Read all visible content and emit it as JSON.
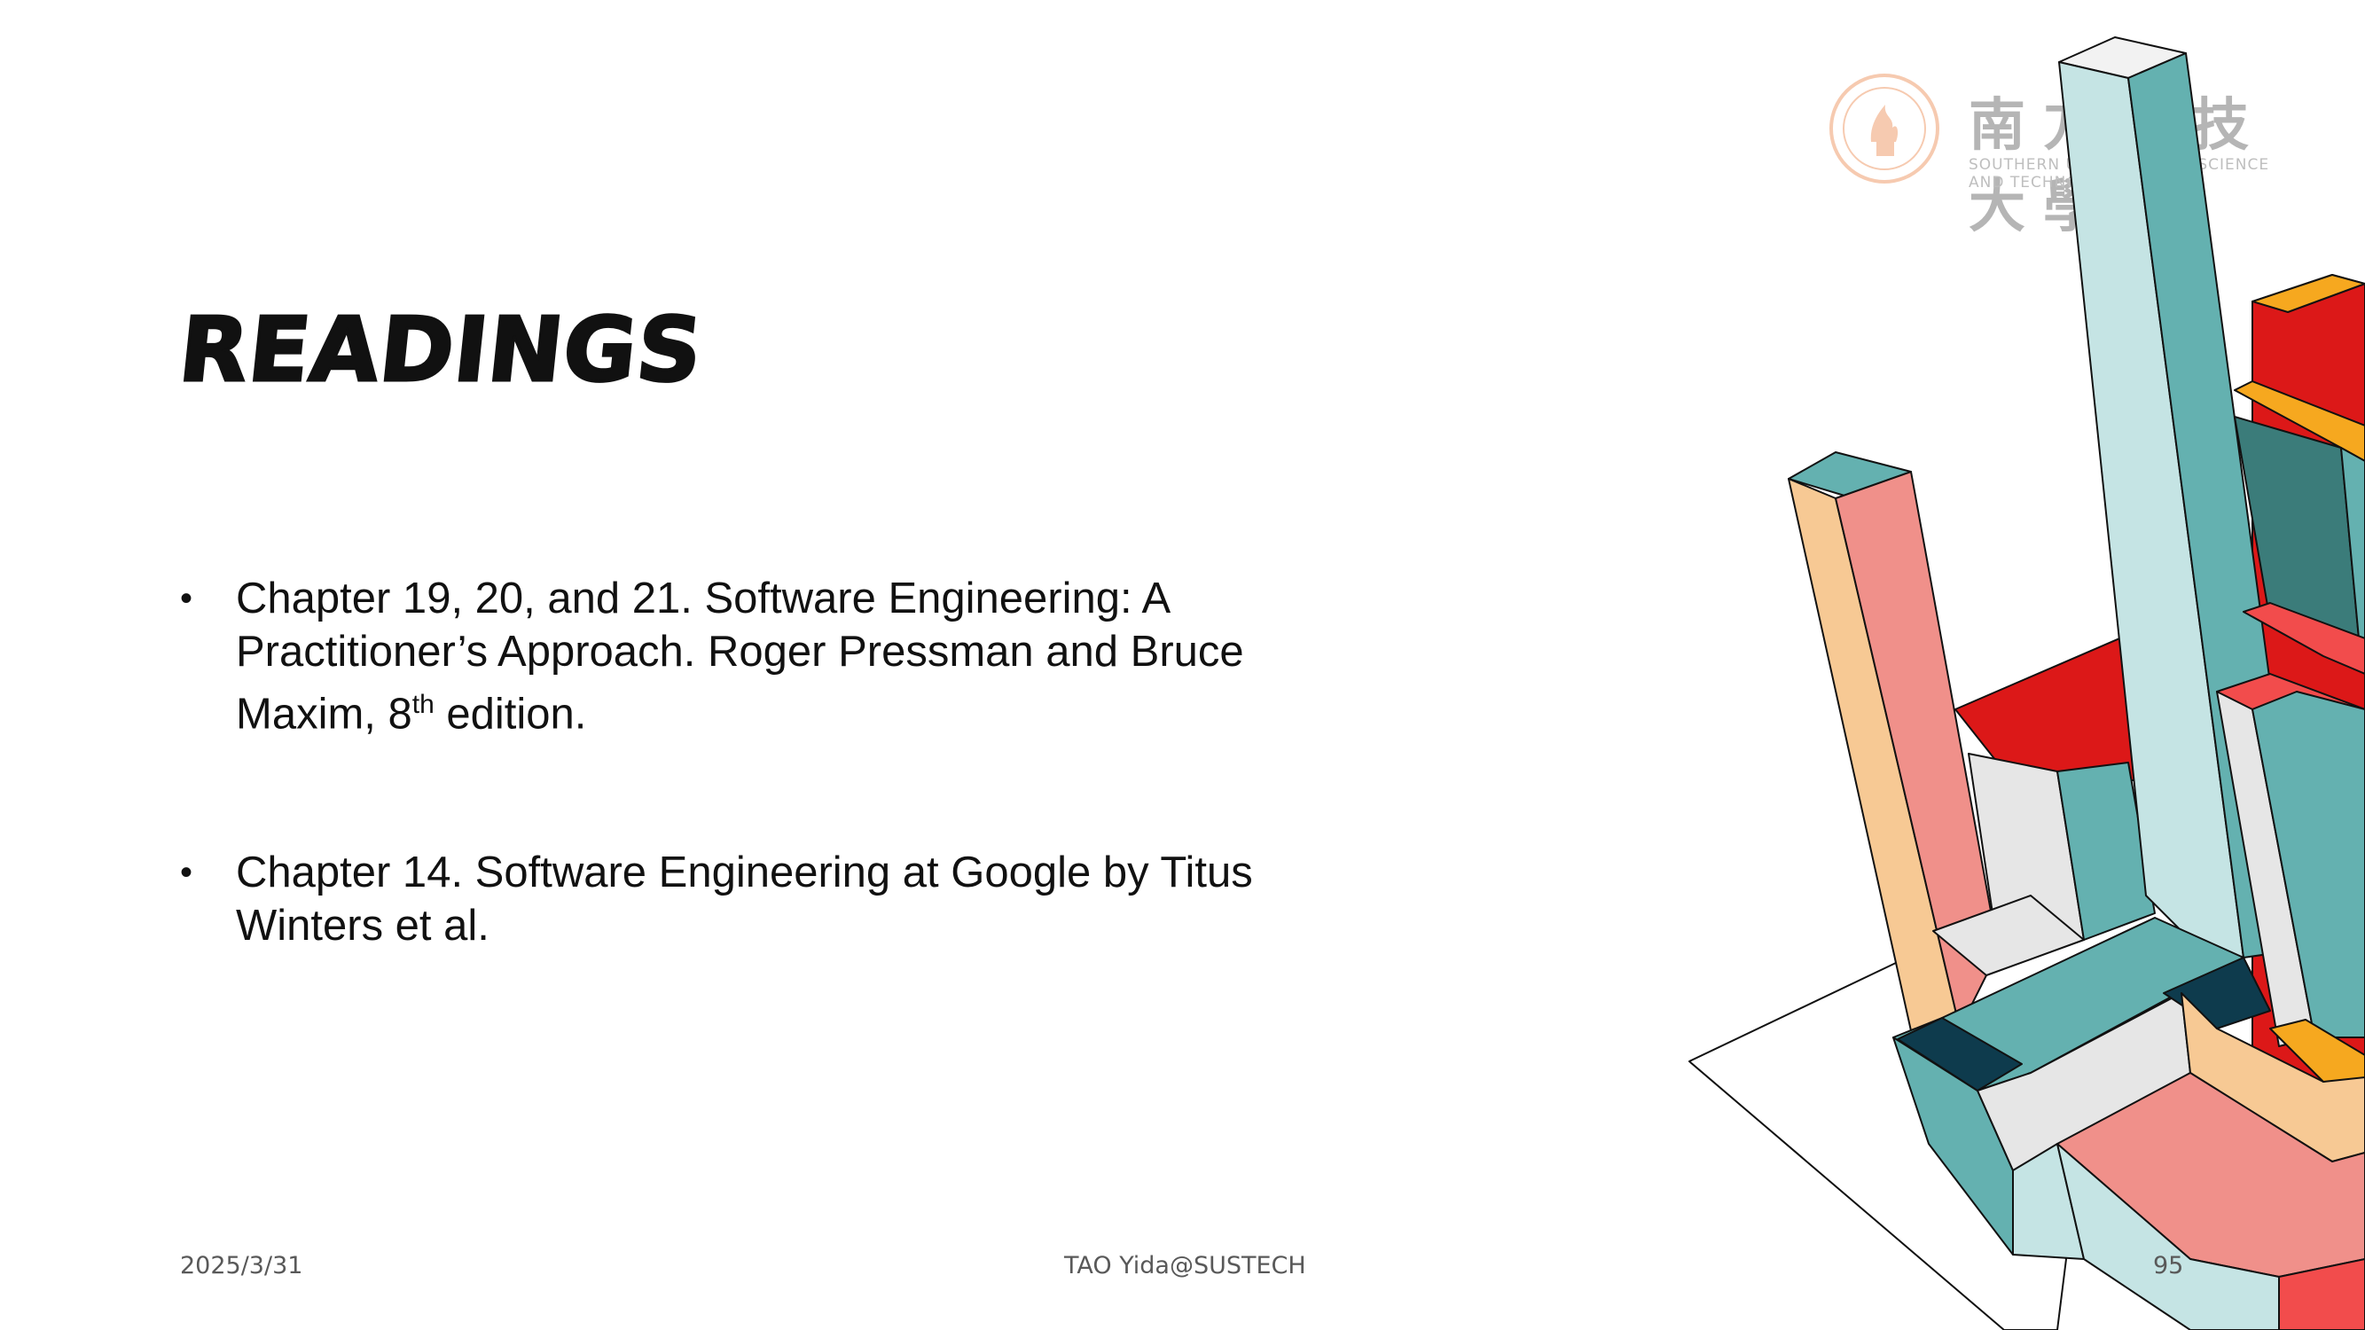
{
  "slide": {
    "title": "Readings",
    "bullets": [
      {
        "before_sup": "Chapter 19, 20, and 21. Software Engineering: A Practitioner’s Approach. Roger Pressman and Bruce Maxim, 8",
        "sup": "th",
        "after_sup": " edition."
      },
      {
        "text": "Chapter 14. Software Engineering at Google by Titus Winters et al."
      }
    ],
    "bullet_symbol": "•"
  },
  "footer": {
    "date": "2025/3/31",
    "author": "TAO Yida@SUSTECH",
    "page": "95"
  },
  "logo": {
    "chinese_name": "南方科技大學",
    "english_name": "SOUTHERN UNIVERSITY OF SCIENCE AND TECHNOLOGY"
  },
  "colors": {
    "teal": "#64b1b0",
    "light_teal": "#c5e4e4",
    "dark_teal": "#3b7c7a",
    "navy": "#0e3b4d",
    "red": "#dc1818",
    "coral": "#f0908a",
    "salmon": "#f24c4c",
    "peach": "#f7c994",
    "orange": "#f6a81f",
    "light_gray": "#e6e6e6",
    "logo_orange": "#f0a070"
  }
}
